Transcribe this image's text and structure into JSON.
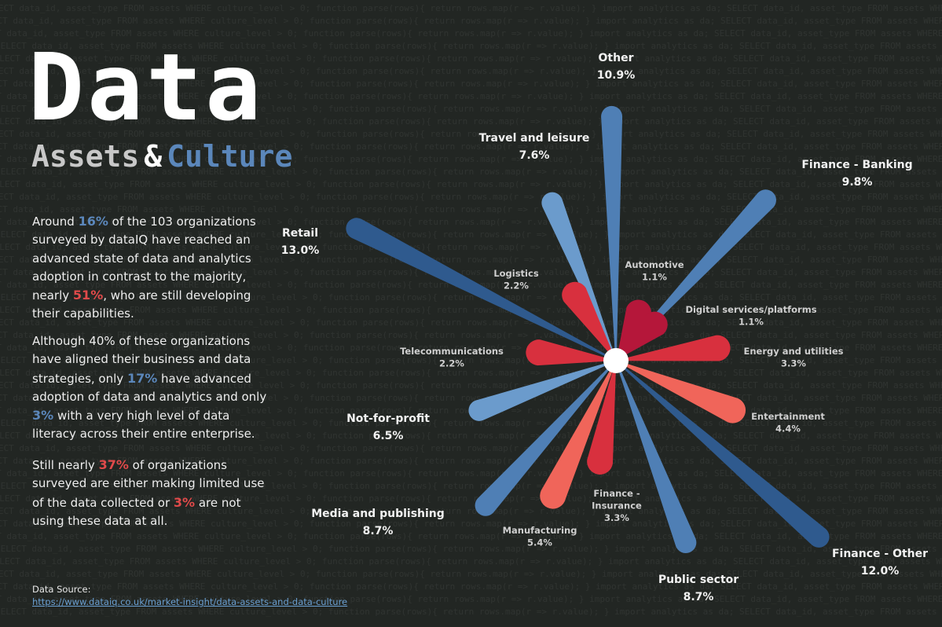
{
  "title": {
    "main": "Data",
    "sub_word1": "Assets",
    "sub_amp": "&",
    "sub_word2": "Culture"
  },
  "paragraphs": {
    "p1": {
      "a": "Around ",
      "h1": "16%",
      "b": " of the 103 organizations surveyed by dataIQ have reached an advanced state of data and analytics adoption in contrast to the majority, nearly ",
      "h2": "51%",
      "c": ", who are still developing their capabilities."
    },
    "p2": {
      "a": "Although 40% of these organizations have aligned their business and data strategies, only ",
      "h1": "17%",
      "b": " have advanced adoption of data and analytics and only ",
      "h2": "3%",
      "c": " with a very high level of data literacy across their entire enterprise."
    },
    "p3": {
      "a": "Still nearly ",
      "h1": "37%",
      "b": " of organizations surveyed are either making limited use of the data collected or ",
      "h2": "3%",
      "c": " are not using these data at all."
    }
  },
  "source": {
    "label": "Data Source:",
    "link": "https://www.dataiq.co.uk/market-insight/data-assets-and-data-culture"
  },
  "colors": {
    "background": "#222623",
    "blue_dark": "#2f5a8e",
    "blue_mid": "#4f7fb5",
    "blue_light": "#6b9bcc",
    "red_dark": "#b5173a",
    "red_mid": "#d8303e",
    "red_light": "#f0655a",
    "center": "#ffffff"
  },
  "chart_data": {
    "type": "radial-bar",
    "unit": "% of organizations",
    "categories": [
      {
        "name": "Other",
        "value": 10.9,
        "value_label": "10.9%",
        "group": "blue",
        "shade": "blue_mid"
      },
      {
        "name": "Finance - Banking",
        "value": 9.8,
        "value_label": "9.8%",
        "group": "blue",
        "shade": "blue_mid"
      },
      {
        "name": "Automotive",
        "value": 1.1,
        "value_label": "1.1%",
        "group": "red",
        "shade": "red_dark"
      },
      {
        "name": "Digital services/platforms",
        "value": 1.1,
        "value_label": "1.1%",
        "group": "red",
        "shade": "red_dark"
      },
      {
        "name": "Energy and utilities",
        "value": 3.3,
        "value_label": "3.3%",
        "group": "red",
        "shade": "red_mid"
      },
      {
        "name": "Entertainment",
        "value": 4.4,
        "value_label": "4.4%",
        "group": "red",
        "shade": "red_light"
      },
      {
        "name": "Finance - Other",
        "value": 12.0,
        "value_label": "12.0%",
        "group": "blue",
        "shade": "blue_dark"
      },
      {
        "name": "Public sector",
        "value": 8.7,
        "value_label": "8.7%",
        "group": "blue",
        "shade": "blue_mid"
      },
      {
        "name": "Finance - Insurance",
        "value": 3.3,
        "value_label": "3.3%",
        "group": "red",
        "shade": "red_mid"
      },
      {
        "name": "Manufacturing",
        "value": 5.4,
        "value_label": "5.4%",
        "group": "red",
        "shade": "red_light"
      },
      {
        "name": "Media and publishing",
        "value": 8.7,
        "value_label": "8.7%",
        "group": "blue",
        "shade": "blue_mid"
      },
      {
        "name": "Not-for-profit",
        "value": 6.5,
        "value_label": "6.5%",
        "group": "blue",
        "shade": "blue_light"
      },
      {
        "name": "Telecommunications",
        "value": 2.2,
        "value_label": "2.2%",
        "group": "red",
        "shade": "red_mid"
      },
      {
        "name": "Retail",
        "value": 13.0,
        "value_label": "13.0%",
        "group": "blue",
        "shade": "blue_dark"
      },
      {
        "name": "Logistics",
        "value": 2.2,
        "value_label": "2.2%",
        "group": "red",
        "shade": "red_mid"
      },
      {
        "name": "Travel and leisure",
        "value": 7.6,
        "value_label": "7.6%",
        "group": "blue",
        "shade": "blue_light"
      }
    ]
  }
}
